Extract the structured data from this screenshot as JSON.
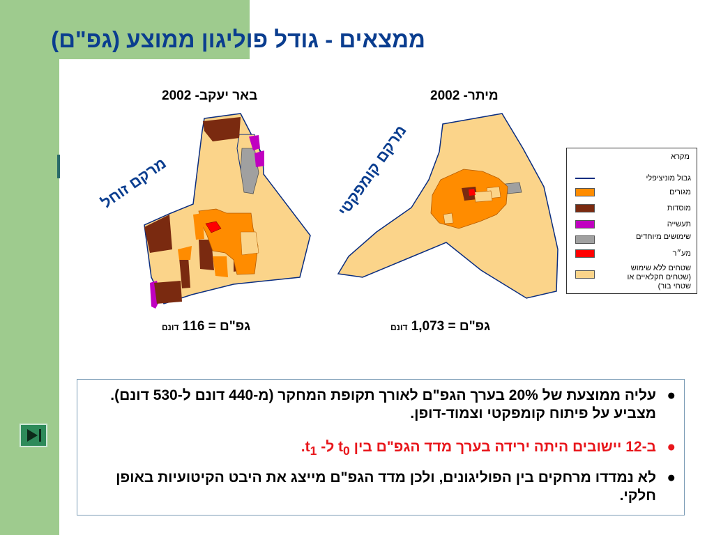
{
  "title": "ממצאים - גודל פוליגון ממוצע (גפ\"ם)",
  "maps": [
    {
      "caption": "באר יעקב- 2002",
      "area_label": "גפ\"ם = 116",
      "area_unit": "דונם",
      "pattern_label": "מרקם זוחל"
    },
    {
      "caption": "מיתר- 2002",
      "area_label": "גפ\"ם = 1,073",
      "area_unit": "דונם",
      "pattern_label": "מרקם קומפקטי"
    }
  ],
  "legend": {
    "title": "מקרא",
    "items": [
      {
        "label": "גבול מוניציפלי",
        "color": "#0a2d80",
        "kind": "line"
      },
      {
        "label": "מגורים",
        "color": "#ff8c00",
        "kind": "swatch"
      },
      {
        "label": "מוסדות",
        "color": "#7a2a10",
        "kind": "swatch"
      },
      {
        "label": "תעשייה",
        "color": "#c000c0",
        "kind": "swatch"
      },
      {
        "label": "שימושים מיוחדים",
        "color": "#a0a0a0",
        "kind": "swatch"
      },
      {
        "label": "מע״ר",
        "color": "#ff0000",
        "kind": "swatch"
      },
      {
        "label": "שטחים ללא שימוש (שטחים חקלאיים או שטחי בור)",
        "color": "#fbd48a",
        "kind": "swatch"
      }
    ]
  },
  "bullets": [
    {
      "text": "עליה ממוצעת של 20% בערך הגפ\"ם לאורך תקופת המחקר (מ-440 דונם ל-530 דונם). מצביע על פיתוח קומפקטי וצמוד-דופן."
    },
    {
      "text_pre": "ב-12 יישובים היתה ירידה בערך מדד הגפ\"ם בין t",
      "sub0": "0",
      "text_mid": " ל- t",
      "sub1": "1",
      "text_post": "."
    },
    {
      "text": "לא נמדדו מרחקים בין הפוליגונים, ולכן מדד הגפ\"ם מייצג את היבט הקיטועיות באופן חלקי."
    }
  ],
  "bullet_symbol": "●"
}
